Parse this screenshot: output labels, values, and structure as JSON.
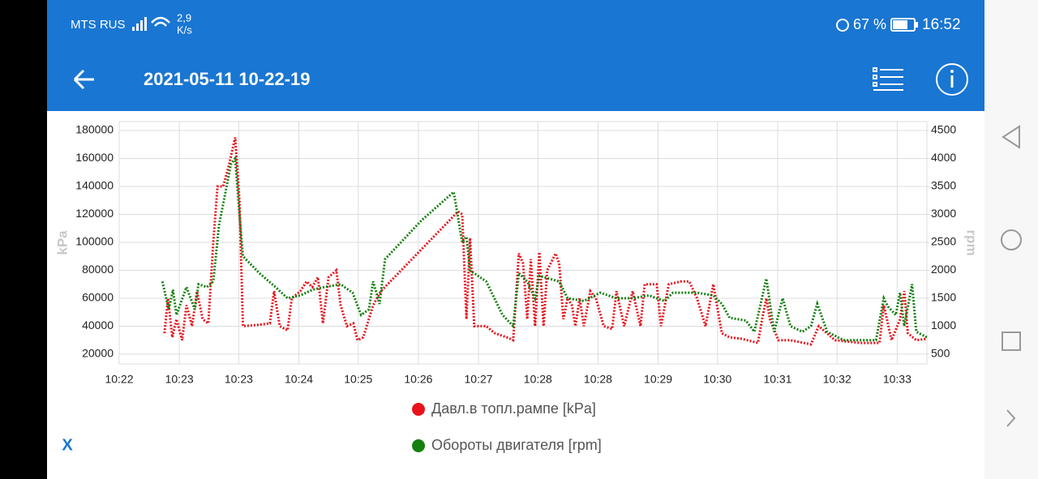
{
  "status_bar": {
    "carrier": "MTS RUS",
    "speed": "2,9",
    "speed_unit": "K/s",
    "battery": "67 %",
    "time": "16:52"
  },
  "header": {
    "title": "2021-05-11 10-22-19"
  },
  "close_button": "X",
  "chart_data": {
    "type": "line",
    "y_label": "kPa",
    "y2_label": "rpm",
    "grid": true,
    "legend": "bottom",
    "xlim": [
      622,
      633.42
    ],
    "xticks": [
      {
        "value": 622.0,
        "label": "10:22"
      },
      {
        "value": 622.85,
        "label": "10:23"
      },
      {
        "value": 623.69,
        "label": "10:23"
      },
      {
        "value": 624.54,
        "label": "10:24"
      },
      {
        "value": 625.38,
        "label": "10:25"
      },
      {
        "value": 626.23,
        "label": "10:26"
      },
      {
        "value": 627.08,
        "label": "10:27"
      },
      {
        "value": 627.92,
        "label": "10:28"
      },
      {
        "value": 628.77,
        "label": "10:28"
      },
      {
        "value": 629.62,
        "label": "10:29"
      },
      {
        "value": 630.46,
        "label": "10:30"
      },
      {
        "value": 631.31,
        "label": "10:31"
      },
      {
        "value": 632.15,
        "label": "10:32"
      },
      {
        "value": 633.0,
        "label": "10:33"
      }
    ],
    "ylim": [
      13000,
      186400
    ],
    "yticks": [
      20000,
      40000,
      60000,
      80000,
      100000,
      120000,
      140000,
      160000,
      180000
    ],
    "y2lim": [
      325,
      4660
    ],
    "y2ticks": [
      500,
      1000,
      1500,
      2000,
      2500,
      3000,
      3500,
      4000,
      4500
    ],
    "series": [
      {
        "name": "Давл.в топл.рампе [kPa]",
        "color": "#e8121b",
        "x": [
          622.64,
          622.69,
          622.75,
          622.81,
          622.89,
          622.95,
          623.03,
          623.1,
          623.18,
          623.26,
          623.33,
          623.39,
          623.47,
          623.55,
          623.64,
          623.7,
          623.75,
          623.98,
          624.13,
          624.19,
          624.27,
          624.38,
          624.44,
          624.56,
          624.65,
          624.73,
          624.81,
          624.88,
          624.96,
          625.07,
          625.13,
          625.22,
          625.31,
          625.37,
          625.45,
          625.59,
          625.7,
          626.79,
          626.85,
          626.91,
          626.96,
          627.02,
          627.19,
          627.31,
          627.48,
          627.57,
          627.65,
          627.71,
          627.77,
          627.82,
          627.88,
          627.94,
          628.0,
          628.05,
          628.17,
          628.22,
          628.28,
          628.34,
          628.4,
          628.45,
          628.51,
          628.57,
          628.66,
          628.74,
          628.85,
          628.97,
          629.03,
          629.14,
          629.26,
          629.37,
          629.43,
          629.6,
          629.66,
          629.77,
          629.94,
          630.06,
          630.17,
          630.29,
          630.4,
          630.52,
          630.63,
          630.8,
          631.03,
          631.09,
          631.15,
          631.2,
          631.32,
          631.49,
          631.78,
          631.89,
          632.12,
          632.47,
          632.75,
          632.81,
          632.92,
          633.04,
          633.1,
          633.15,
          633.27,
          633.42
        ],
        "values": [
          35000,
          60000,
          32000,
          45000,
          30000,
          55000,
          40000,
          65000,
          45000,
          42000,
          100000,
          140000,
          140000,
          155000,
          175000,
          130000,
          40000,
          41000,
          42000,
          65000,
          40000,
          37000,
          60000,
          65000,
          72000,
          68000,
          75000,
          42000,
          75000,
          80000,
          55000,
          40000,
          42000,
          30000,
          32000,
          55000,
          65000,
          122000,
          120000,
          45000,
          103000,
          40000,
          40000,
          35000,
          32000,
          30000,
          92000,
          85000,
          45000,
          88000,
          40000,
          93000,
          40000,
          80000,
          92000,
          85000,
          45000,
          60000,
          55000,
          40000,
          60000,
          40000,
          65000,
          60000,
          40000,
          38000,
          65000,
          40000,
          65000,
          40000,
          70000,
          70000,
          40000,
          70000,
          72000,
          72000,
          60000,
          40000,
          70000,
          35000,
          32000,
          31000,
          28000,
          45000,
          60000,
          45000,
          30000,
          30000,
          27000,
          40000,
          30000,
          28000,
          28000,
          55000,
          30000,
          45000,
          65000,
          35000,
          30000,
          31000
        ]
      },
      {
        "name": "Обороты двигателя [rpm]",
        "color": "#14800f",
        "axis": "y2",
        "x": [
          622.61,
          622.7,
          622.76,
          622.81,
          622.95,
          623.07,
          623.12,
          623.24,
          623.33,
          623.41,
          623.58,
          623.64,
          623.7,
          623.75,
          623.98,
          624.21,
          624.38,
          624.56,
          624.73,
          624.9,
          625.13,
          625.3,
          625.42,
          625.53,
          625.59,
          625.68,
          625.76,
          626.28,
          626.73,
          626.85,
          626.91,
          626.96,
          627.19,
          627.42,
          627.57,
          627.65,
          627.77,
          627.88,
          627.94,
          628.22,
          628.34,
          628.57,
          628.8,
          629.03,
          629.26,
          629.49,
          629.71,
          629.83,
          630.17,
          630.4,
          630.52,
          630.63,
          630.86,
          630.98,
          631.15,
          631.26,
          631.38,
          631.49,
          631.66,
          631.78,
          631.87,
          632.01,
          632.24,
          632.7,
          632.81,
          632.87,
          632.98,
          633.04,
          633.1,
          633.21,
          633.27,
          633.42
        ],
        "values": [
          1800,
          1300,
          1650,
          1200,
          1700,
          1300,
          1750,
          1700,
          1800,
          2800,
          3900,
          4000,
          3000,
          2250,
          1950,
          1700,
          1500,
          1550,
          1650,
          1700,
          1750,
          1600,
          1200,
          1300,
          1800,
          1400,
          2200,
          2900,
          3400,
          2500,
          2600,
          2000,
          1800,
          1200,
          1000,
          1950,
          1800,
          1500,
          1900,
          1800,
          1500,
          1450,
          1600,
          1500,
          1500,
          1550,
          1450,
          1600,
          1600,
          1550,
          1400,
          1150,
          1100,
          900,
          1850,
          900,
          1500,
          1000,
          900,
          1000,
          1400,
          900,
          750,
          750,
          1500,
          1350,
          1200,
          1600,
          1000,
          1750,
          900,
          800
        ]
      }
    ]
  }
}
